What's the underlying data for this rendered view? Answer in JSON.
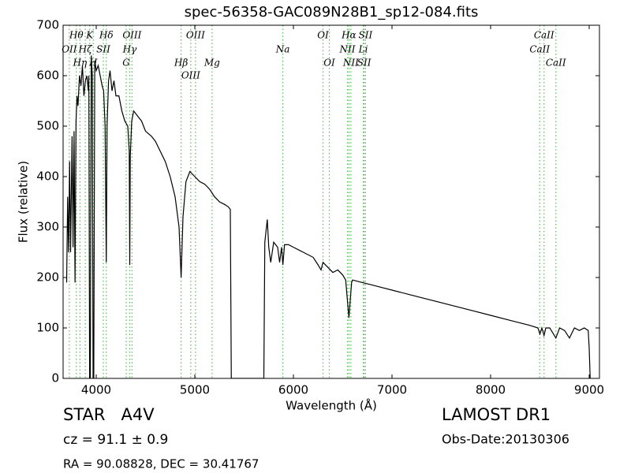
{
  "chart_data": {
    "type": "line",
    "title": "spec-56358-GAC089N28B1_sp12-084.fits",
    "xlabel": "Wavelength (Å)",
    "ylabel": "Flux (relative)",
    "color": "#000000",
    "line_color": "#5cb85c",
    "xlim": [
      3664,
      9104
    ],
    "xticks": [
      4000,
      5000,
      6000,
      7000,
      8000,
      9000
    ],
    "ylim": [
      0,
      700
    ],
    "yticks": [
      0,
      100,
      200,
      300,
      400,
      500,
      600,
      700
    ],
    "x": [
      3700,
      3710,
      3720,
      3730,
      3740,
      3755,
      3765,
      3775,
      3785,
      3795,
      3805,
      3815,
      3830,
      3845,
      3860,
      3875,
      3890,
      3905,
      3920,
      3925,
      3933,
      3940,
      3950,
      3960,
      3968,
      3975,
      3985,
      4000,
      4020,
      4040,
      4060,
      4075,
      4090,
      4102,
      4110,
      4125,
      4140,
      4160,
      4180,
      4200,
      4230,
      4260,
      4290,
      4320,
      4335,
      4340,
      4345,
      4360,
      4380,
      4420,
      4460,
      4500,
      4560,
      4600,
      4650,
      4700,
      4750,
      4800,
      4840,
      4861,
      4880,
      4910,
      4950,
      5000,
      5050,
      5100,
      5150,
      5200,
      5250,
      5300,
      5340,
      5360,
      5370,
      5700,
      5710,
      5735,
      5750,
      5770,
      5800,
      5840,
      5860,
      5880,
      5893,
      5910,
      5950,
      6000,
      6100,
      6200,
      6250,
      6280,
      6300,
      6350,
      6400,
      6450,
      6500,
      6530,
      6563,
      6590,
      6600,
      6700,
      6800,
      6900,
      7000,
      7200,
      7400,
      7600,
      7800,
      8000,
      8200,
      8400,
      8480,
      8500,
      8520,
      8542,
      8560,
      8600,
      8662,
      8700,
      8750,
      8800,
      8850,
      8900,
      8950,
      8990,
      9000,
      9010
    ],
    "values": [
      190,
      360,
      250,
      430,
      250,
      480,
      260,
      490,
      190,
      510,
      560,
      540,
      600,
      580,
      620,
      560,
      590,
      600,
      570,
      600,
      0,
      0,
      640,
      600,
      0,
      0,
      630,
      610,
      620,
      600,
      580,
      570,
      500,
      230,
      500,
      590,
      610,
      570,
      590,
      560,
      560,
      530,
      510,
      500,
      450,
      225,
      440,
      510,
      530,
      520,
      510,
      490,
      480,
      470,
      450,
      430,
      400,
      360,
      300,
      200,
      320,
      390,
      410,
      400,
      390,
      385,
      375,
      360,
      350,
      345,
      340,
      335,
      0,
      0,
      270,
      315,
      260,
      230,
      270,
      260,
      230,
      260,
      225,
      265,
      265,
      260,
      250,
      240,
      225,
      215,
      230,
      220,
      210,
      215,
      205,
      195,
      120,
      190,
      195,
      190,
      185,
      180,
      175,
      165,
      155,
      145,
      135,
      125,
      115,
      105,
      100,
      88,
      100,
      85,
      100,
      100,
      80,
      100,
      95,
      80,
      100,
      95,
      100,
      95,
      60,
      0
    ],
    "lines": [
      {
        "label": "Hθ",
        "wavelength": 3798
      },
      {
        "label": "K",
        "wavelength": 3934
      },
      {
        "label": "Hδ",
        "wavelength": 4102
      },
      {
        "label": "OIII",
        "wavelength": 4363
      },
      {
        "label": "OIII",
        "wavelength": 5007
      },
      {
        "label": "OI",
        "wavelength": 6300
      },
      {
        "label": "Hα",
        "wavelength": 6563
      },
      {
        "label": "SII",
        "wavelength": 6731
      },
      {
        "label": "CaII",
        "wavelength": 8542
      },
      {
        "label": "OII",
        "wavelength": 3727
      },
      {
        "label": "Hζ",
        "wavelength": 3889
      },
      {
        "label": "SII",
        "wavelength": 4072
      },
      {
        "label": "Hγ",
        "wavelength": 4340
      },
      {
        "label": "Na",
        "wavelength": 5893
      },
      {
        "label": "NII",
        "wavelength": 6548
      },
      {
        "label": "Li",
        "wavelength": 6708
      },
      {
        "label": "CaII",
        "wavelength": 8498
      },
      {
        "label": "Hη",
        "wavelength": 3835
      },
      {
        "label": "H",
        "wavelength": 3970
      },
      {
        "label": "G",
        "wavelength": 4304
      },
      {
        "label": "Hβ",
        "wavelength": 4861
      },
      {
        "label": "Mg",
        "wavelength": 5175
      },
      {
        "label": "OI",
        "wavelength": 6364
      },
      {
        "label": "NII",
        "wavelength": 6583
      },
      {
        "label": "SII",
        "wavelength": 6717
      },
      {
        "label": "CaII",
        "wavelength": 8662
      },
      {
        "label": "OIII",
        "wavelength": 4959
      }
    ],
    "object_class": "STAR   A4V",
    "redshift": "cz = 91.1 ± 0.9",
    "coords": "RA = 90.08828, DEC = 30.41767",
    "survey": "LAMOST DR1",
    "obs_date": "Obs-Date:20130306"
  }
}
